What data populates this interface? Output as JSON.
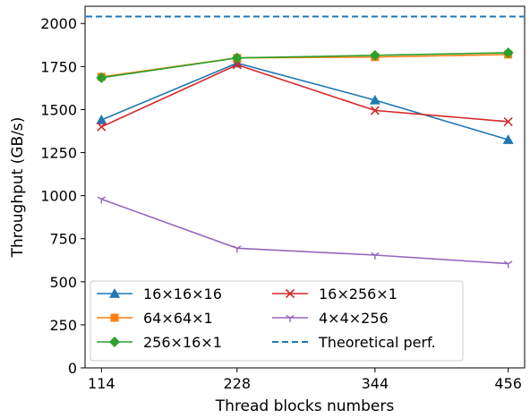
{
  "chart_data": {
    "type": "line",
    "title": "",
    "xlabel": "Thread blocks numbers",
    "ylabel": "Throughput (GB/s)",
    "x": [
      114,
      228,
      344,
      456
    ],
    "x_ticks": [
      114,
      228,
      344,
      456
    ],
    "y_ticks": [
      0,
      250,
      500,
      750,
      1000,
      1250,
      1500,
      1750,
      2000
    ],
    "ylim": [
      0,
      2100
    ],
    "grid": false,
    "legend_position": "lower-left",
    "series": [
      {
        "name": "16×16×16",
        "values": [
          1440,
          1770,
          1555,
          1325
        ],
        "color": "#1f77b4",
        "marker": "triangle"
      },
      {
        "name": "16×256×1",
        "values": [
          1400,
          1760,
          1495,
          1430
        ],
        "color": "#d62728",
        "marker": "x"
      },
      {
        "name": "64×64×1",
        "values": [
          1690,
          1800,
          1805,
          1820
        ],
        "color": "#ff7f0e",
        "marker": "square"
      },
      {
        "name": "4×4×256",
        "values": [
          980,
          695,
          655,
          605
        ],
        "color": "#9467bd",
        "marker": "tri-down"
      },
      {
        "name": "256×16×1",
        "values": [
          1685,
          1800,
          1815,
          1830
        ],
        "color": "#2ca02c",
        "marker": "diamond"
      }
    ],
    "reference_line": {
      "name": "Theoretical perf.",
      "value": 2040,
      "color": "#1f77b4",
      "style": "dashed"
    }
  }
}
